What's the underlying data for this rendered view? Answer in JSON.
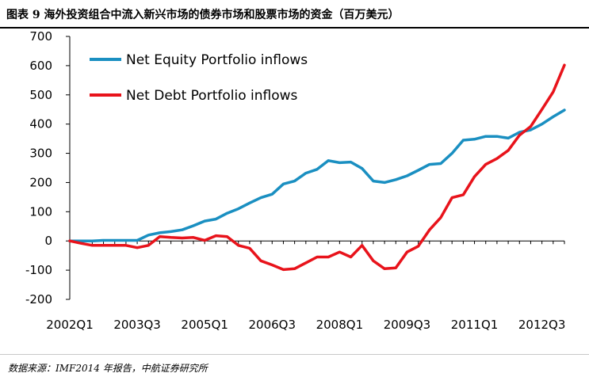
{
  "figure": {
    "title": "图表 9 海外投资组合中流入新兴市场的债券市场和股票市场的资金（百万美元）",
    "source": "数据来源：IMF2014 年报告，中航证券研究所"
  },
  "chart_data": {
    "type": "line",
    "title": "",
    "xlabel": "",
    "ylabel": "",
    "ylim": [
      -200,
      700
    ],
    "yticks": [
      -200,
      -100,
      0,
      100,
      200,
      300,
      400,
      500,
      600,
      700
    ],
    "ytick_labels": [
      "-200",
      "-100",
      "0",
      "100",
      "200",
      "300",
      "400",
      "500",
      "600",
      "700"
    ],
    "x": [
      "2002Q1",
      "2002Q2",
      "2002Q3",
      "2002Q4",
      "2003Q1",
      "2003Q2",
      "2003Q3",
      "2003Q4",
      "2004Q1",
      "2004Q2",
      "2004Q3",
      "2004Q4",
      "2005Q1",
      "2005Q2",
      "2005Q3",
      "2005Q4",
      "2006Q1",
      "2006Q2",
      "2006Q3",
      "2006Q4",
      "2007Q1",
      "2007Q2",
      "2007Q3",
      "2007Q4",
      "2008Q1",
      "2008Q2",
      "2008Q3",
      "2008Q4",
      "2009Q1",
      "2009Q2",
      "2009Q3",
      "2009Q4",
      "2010Q1",
      "2010Q2",
      "2010Q3",
      "2010Q4",
      "2011Q1",
      "2011Q2",
      "2011Q3",
      "2011Q4",
      "2012Q1",
      "2012Q2",
      "2012Q3",
      "2012Q4",
      "2013Q1"
    ],
    "xtick_labels": [
      "2002Q1",
      "2003Q3",
      "2005Q1",
      "2006Q3",
      "2008Q1",
      "2009Q3",
      "2011Q1",
      "2012Q3"
    ],
    "grid": false,
    "legend_position": "top-left",
    "series": [
      {
        "name": "Net Equity Portfolio inflows",
        "color": "#1a8fc1",
        "values": [
          0,
          0,
          0,
          2,
          2,
          2,
          2,
          20,
          28,
          32,
          38,
          52,
          68,
          75,
          95,
          110,
          130,
          148,
          160,
          195,
          205,
          232,
          245,
          275,
          268,
          270,
          248,
          205,
          200,
          210,
          223,
          242,
          262,
          265,
          300,
          345,
          348,
          358,
          358,
          352,
          372,
          380,
          400,
          425,
          448
        ]
      },
      {
        "name": "Net Debt Portfolio inflows",
        "color": "#e8131b",
        "values": [
          0,
          -8,
          -15,
          -15,
          -15,
          -15,
          -23,
          -15,
          15,
          12,
          10,
          12,
          2,
          18,
          15,
          -15,
          -25,
          -68,
          -82,
          -98,
          -95,
          -75,
          -55,
          -55,
          -38,
          -55,
          -15,
          -68,
          -95,
          -92,
          -38,
          -18,
          38,
          80,
          148,
          158,
          220,
          262,
          282,
          310,
          362,
          392,
          450,
          510,
          602
        ]
      }
    ]
  }
}
